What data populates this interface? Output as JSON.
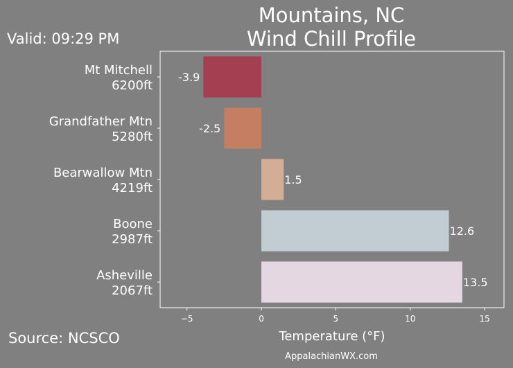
{
  "header": {
    "title_line1": "Mountains, NC",
    "title_line2": "Wind Chill Profile",
    "valid": "Valid: 09:29 PM"
  },
  "footer": {
    "source": "Source: NCSCO",
    "credit": "AppalachianWX.com"
  },
  "chart_data": {
    "type": "bar",
    "orientation": "horizontal",
    "xlabel": "Temperature (°F)",
    "xlim": [
      -6.8,
      16.3
    ],
    "xticks": [
      -5,
      0,
      5,
      10,
      15
    ],
    "xtick_labels": [
      "−5",
      "0",
      "5",
      "10",
      "15"
    ],
    "grid": false,
    "bars": [
      {
        "station": "Mt Mitchell",
        "elevation": "6200ft",
        "value": -3.9,
        "label": "-3.9",
        "color": "#a33f51"
      },
      {
        "station": "Grandfather Mtn",
        "elevation": "5280ft",
        "value": -2.5,
        "label": "-2.5",
        "color": "#c47e62"
      },
      {
        "station": "Bearwallow Mtn",
        "elevation": "4219ft",
        "value": 1.5,
        "label": "1.5",
        "color": "#d3ad95"
      },
      {
        "station": "Boone",
        "elevation": "2987ft",
        "value": 12.6,
        "label": "12.6",
        "color": "#c1ccd3"
      },
      {
        "station": "Asheville",
        "elevation": "2067ft",
        "value": 13.5,
        "label": "13.5",
        "color": "#e4d7e1"
      }
    ]
  }
}
